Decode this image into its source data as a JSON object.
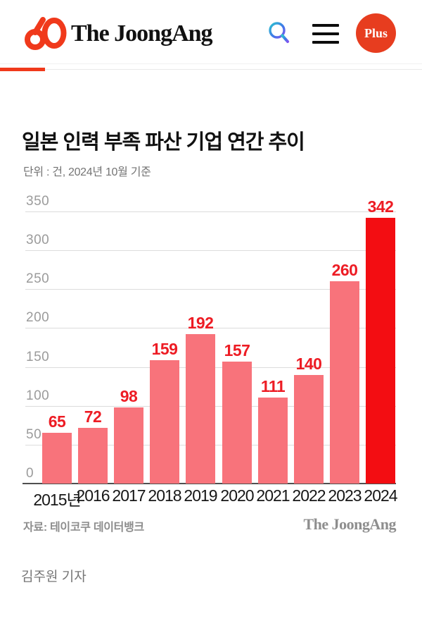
{
  "header": {
    "logo_number": "60",
    "logo_text": "The JoongAng",
    "plus_label": "Plus"
  },
  "article": {
    "title": "일본 인력 부족 파산 기업 연간 추이",
    "unit_note": "단위 : 건, 2024년 10월 기준",
    "source": "자료: 테이코쿠 데이터뱅크",
    "watermark": "The JoongAng",
    "byline": "김주원 기자"
  },
  "chart_data": {
    "type": "bar",
    "title": "일본 인력 부족 파산 기업 연간 추이",
    "unit_note": "단위 : 건, 2024년 10월 기준",
    "categories": [
      "2015년",
      "2016",
      "2017",
      "2018",
      "2019",
      "2020",
      "2021",
      "2022",
      "2023",
      "2024"
    ],
    "values": [
      65,
      72,
      98,
      159,
      192,
      157,
      111,
      140,
      260,
      342
    ],
    "ylim": [
      0,
      350
    ],
    "yticks": [
      0,
      50,
      100,
      150,
      200,
      250,
      300,
      350
    ],
    "grid": true,
    "legend": "none",
    "bar_color": "#f8737b",
    "highlight_color": "#f30d12",
    "highlight_index": 9,
    "value_label_color": "#ed1c24",
    "source": "자료: 테이코쿠 데이터뱅크"
  }
}
